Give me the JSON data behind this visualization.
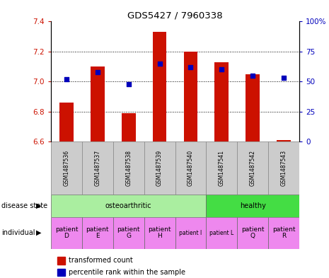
{
  "title": "GDS5427 / 7960338",
  "samples": [
    "GSM1487536",
    "GSM1487537",
    "GSM1487538",
    "GSM1487539",
    "GSM1487540",
    "GSM1487541",
    "GSM1487542",
    "GSM1487543"
  ],
  "red_values": [
    6.86,
    7.1,
    6.79,
    7.33,
    7.2,
    7.13,
    7.05,
    6.61
  ],
  "blue_values": [
    52,
    58,
    48,
    65,
    62,
    60,
    55,
    53
  ],
  "ylim_left": [
    6.6,
    7.4
  ],
  "ylim_right": [
    0,
    100
  ],
  "yticks_left": [
    6.6,
    6.8,
    7.0,
    7.2,
    7.4
  ],
  "yticks_right": [
    0,
    25,
    50,
    75,
    100
  ],
  "yticklabels_right": [
    "0",
    "25",
    "50",
    "75",
    "100%"
  ],
  "grid_lines": [
    6.8,
    7.0,
    7.2
  ],
  "disease_state_labels": [
    "osteoarthritic",
    "healthy"
  ],
  "disease_state_ranges": [
    [
      0,
      4
    ],
    [
      5,
      7
    ]
  ],
  "disease_colors": [
    "#aaeea0",
    "#44dd44"
  ],
  "individuals": [
    "patient\nD",
    "patient\nE",
    "patient\nG",
    "patient\nH",
    "patient I",
    "patient L",
    "patient\nQ",
    "patient\nR"
  ],
  "individual_colors": [
    "#ee88ee",
    "#ee88ee",
    "#ee88ee",
    "#ee88ee",
    "#ee88ee",
    "#ee88ee",
    "#ee88ee",
    "#ee88ee"
  ],
  "individual_small": [
    false,
    false,
    false,
    false,
    true,
    true,
    false,
    false
  ],
  "bar_color": "#cc1100",
  "dot_color": "#0000bb",
  "grid_color": "#888888",
  "sample_bg": "#cccccc",
  "label_left_disease": "disease state",
  "label_left_individual": "individual",
  "legend_red": "transformed count",
  "legend_blue": "percentile rank within the sample"
}
